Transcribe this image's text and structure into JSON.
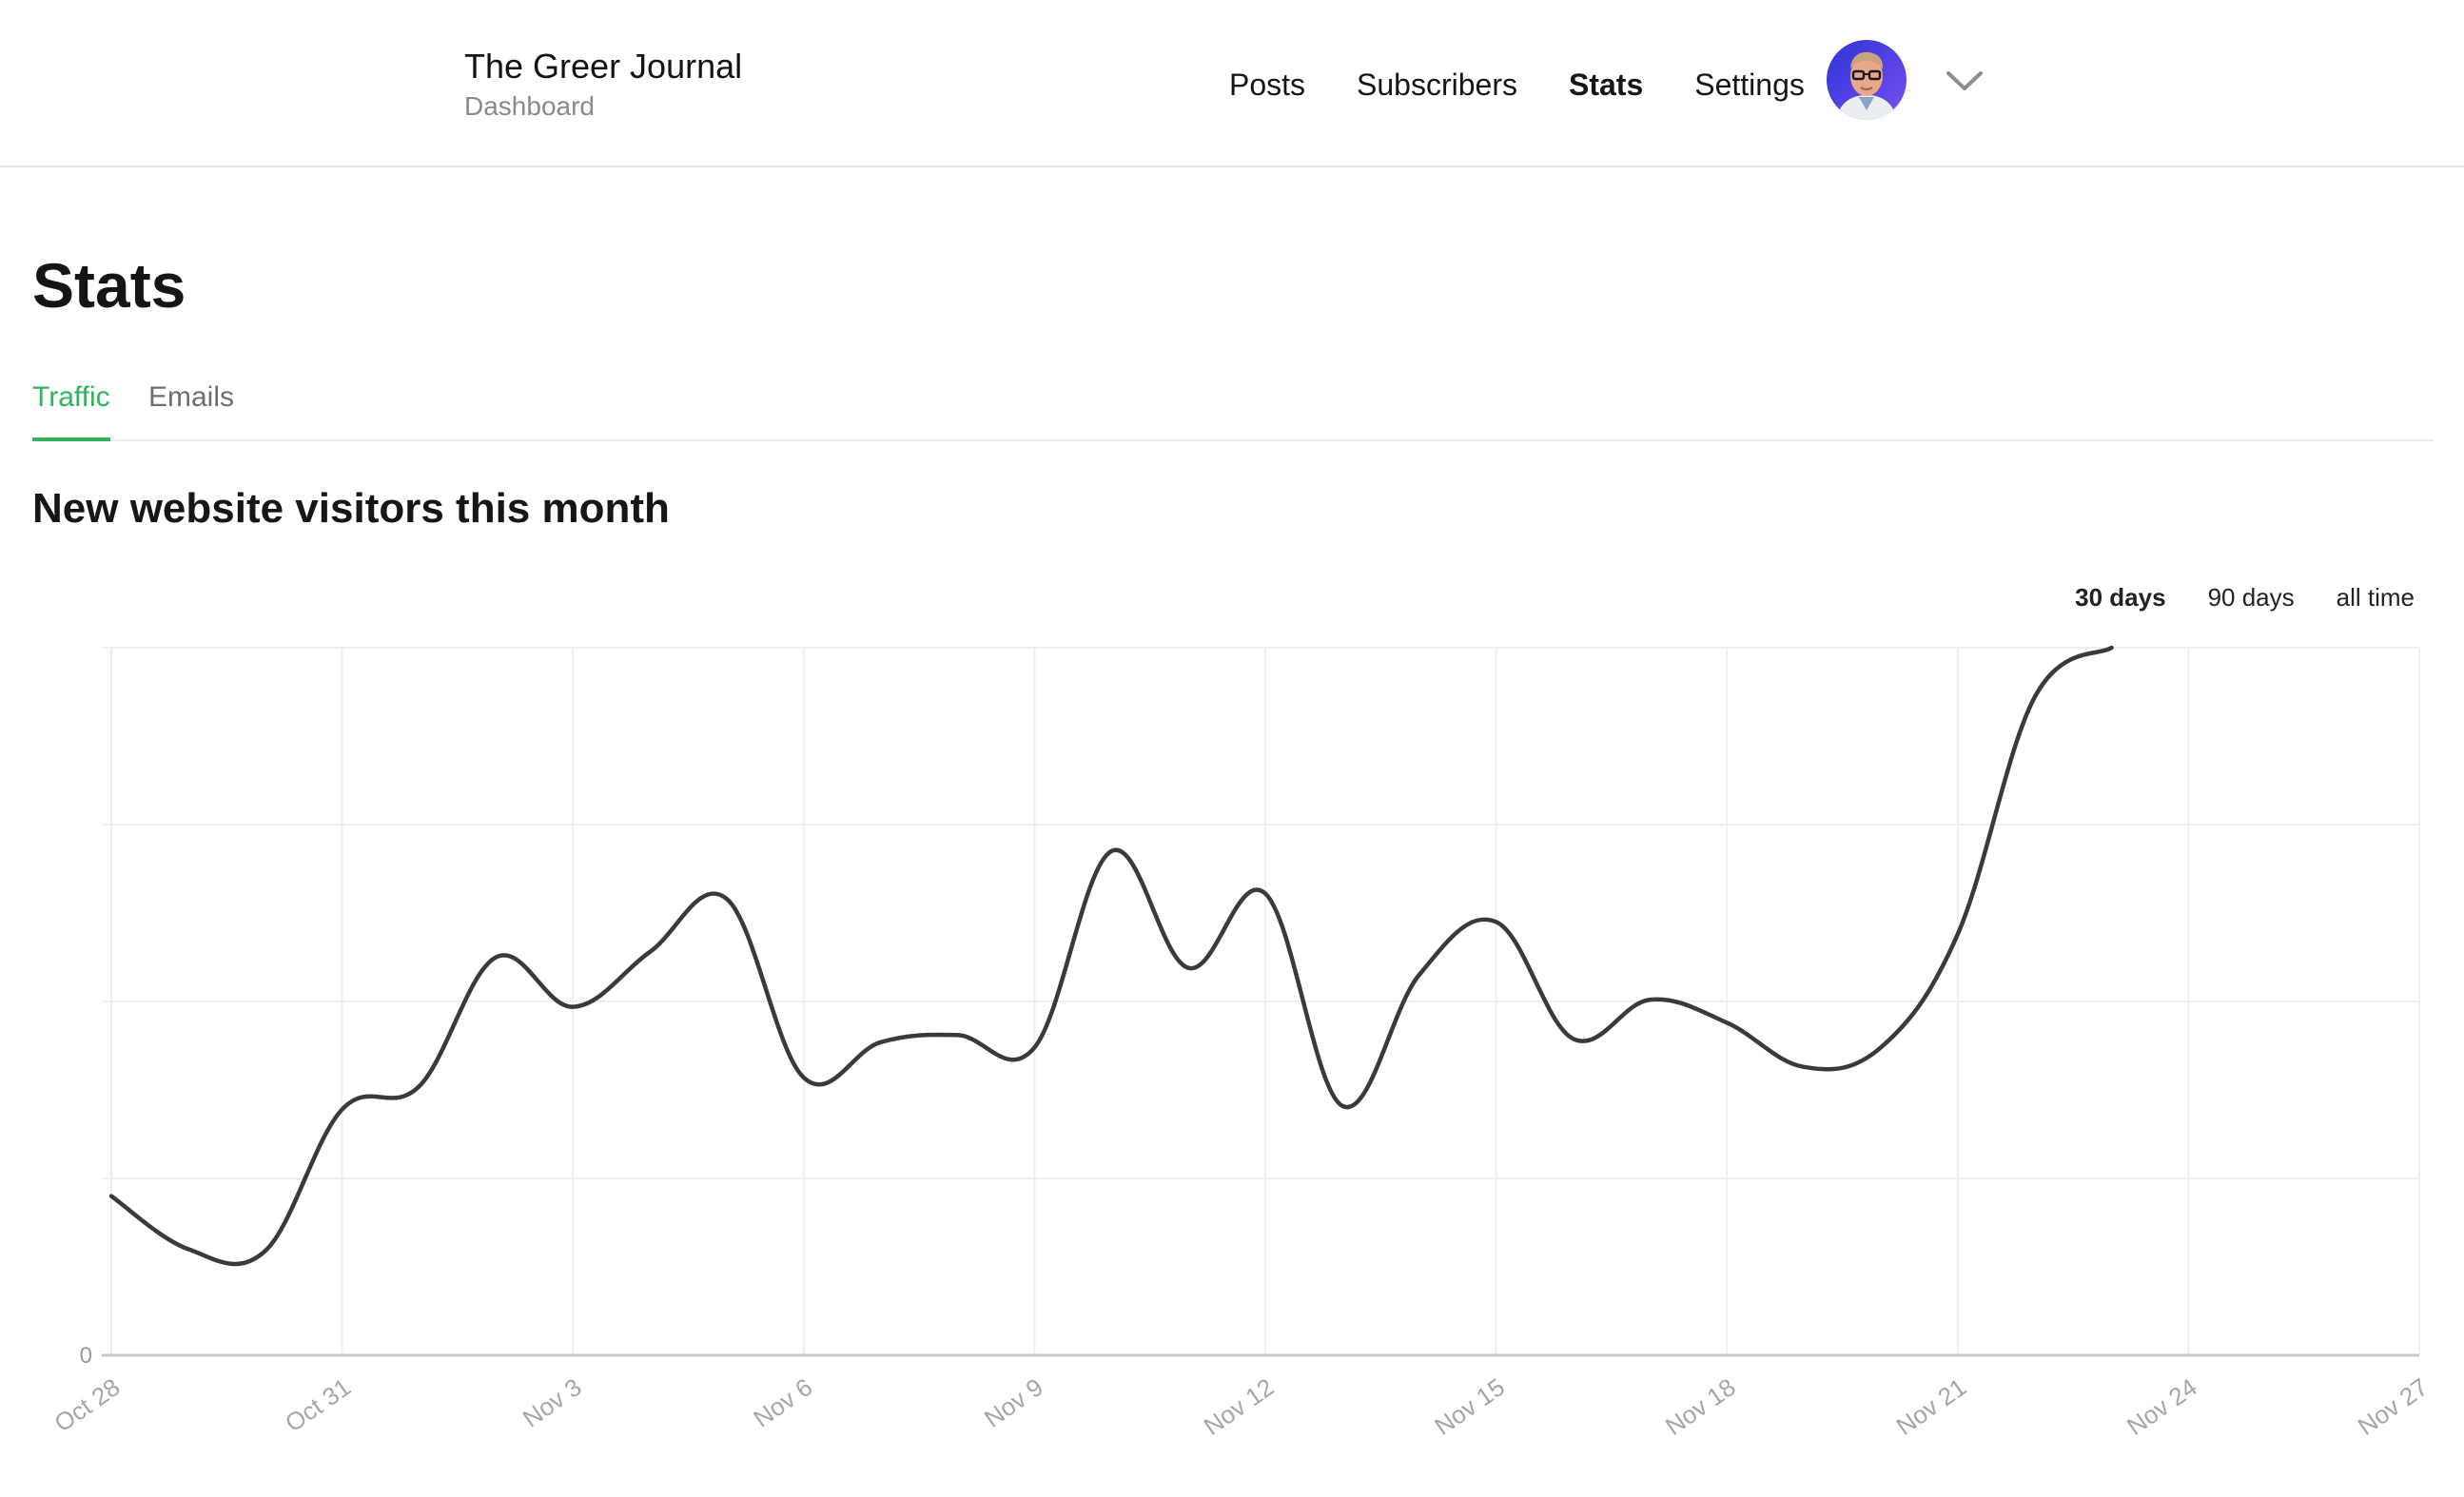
{
  "header": {
    "brand_title": "The Greer Journal",
    "brand_subtitle": "Dashboard",
    "nav": [
      {
        "label": "Posts",
        "active": false
      },
      {
        "label": "Subscribers",
        "active": false
      },
      {
        "label": "Stats",
        "active": true
      },
      {
        "label": "Settings",
        "active": false
      }
    ],
    "avatar_icon": "user-avatar-photo",
    "menu_icon": "chevron-down-icon"
  },
  "page": {
    "title": "Stats",
    "tabs": [
      {
        "label": "Traffic",
        "active": true
      },
      {
        "label": "Emails",
        "active": false
      }
    ],
    "section_title": "New website visitors this month",
    "ranges": [
      {
        "label": "30 days",
        "active": true
      },
      {
        "label": "90 days",
        "active": false
      },
      {
        "label": "all time",
        "active": false
      }
    ]
  },
  "colors": {
    "accent": "#2fb35c",
    "line": "#3a3a3a",
    "grid": "#efefef"
  },
  "chart_data": {
    "type": "line",
    "title": "",
    "xlabel": "",
    "ylabel": "",
    "y_tick_labels": [
      "0"
    ],
    "ylim": [
      0,
      4
    ],
    "grid": true,
    "x": [
      "Oct 28",
      "Oct 29",
      "Oct 30",
      "Oct 31",
      "Nov 1",
      "Nov 2",
      "Nov 3",
      "Nov 4",
      "Nov 5",
      "Nov 6",
      "Nov 7",
      "Nov 8",
      "Nov 9",
      "Nov 10",
      "Nov 11",
      "Nov 12",
      "Nov 13",
      "Nov 14",
      "Nov 15",
      "Nov 16",
      "Nov 17",
      "Nov 18",
      "Nov 19",
      "Nov 20",
      "Nov 21",
      "Nov 22",
      "Nov 23"
    ],
    "x_tick_labels": [
      "Oct 28",
      "Oct 31",
      "Nov 3",
      "Nov 6",
      "Nov 9",
      "Nov 12",
      "Nov 15",
      "Nov 18",
      "Nov 21",
      "Nov 24",
      "Nov 27"
    ],
    "series": [
      {
        "values": [
          0.9,
          0.6,
          0.59,
          1.39,
          1.52,
          2.25,
          1.97,
          2.28,
          2.58,
          1.57,
          1.77,
          1.81,
          1.74,
          2.85,
          2.19,
          2.61,
          1.41,
          2.15,
          2.45,
          1.79,
          2.01,
          1.88,
          1.63,
          1.74,
          2.38,
          3.72,
          4.0
        ]
      }
    ]
  }
}
